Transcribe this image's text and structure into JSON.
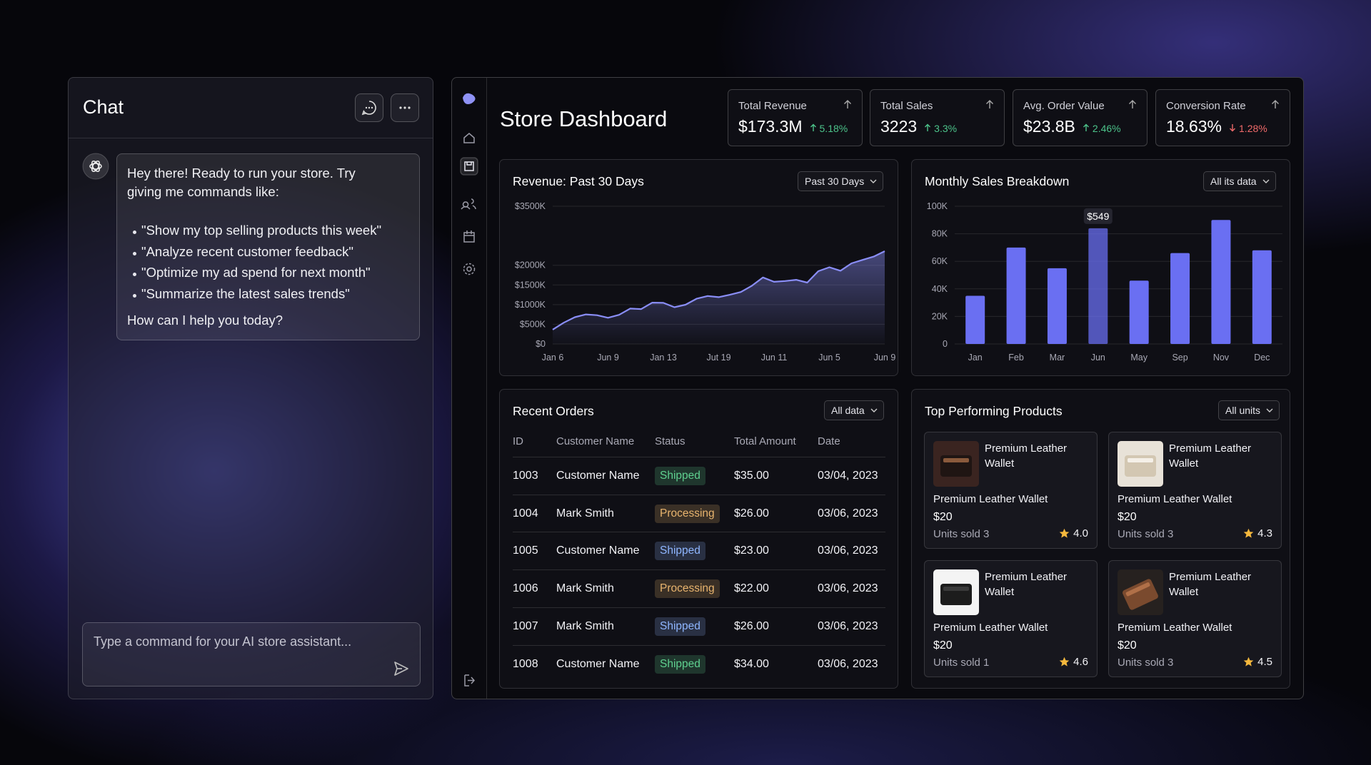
{
  "chat": {
    "title": "Chat",
    "message": {
      "intro": "Hey there! Ready to run your store. Try giving me commands like:",
      "commands": [
        "\"Show my top selling products this week\"",
        "\"Analyze recent customer feedback\"",
        "\"Optimize my ad spend for next month\"",
        "\"Summarize the latest sales trends\""
      ],
      "closing": "How can I help you today?"
    },
    "input_placeholder": "Type a command for your AI store assistant..."
  },
  "dashboard": {
    "title": "Store Dashboard",
    "kpis": [
      {
        "label": "Total Revenue",
        "value": "$173.3M",
        "change": "5.18%",
        "trend": "up"
      },
      {
        "label": "Total Sales",
        "value": "3223",
        "change": "3.3%",
        "trend": "up"
      },
      {
        "label": "Avg. Order Value",
        "value": "$23.8B",
        "change": "2.46%",
        "trend": "up"
      },
      {
        "label": "Conversion Rate",
        "value": "18.63%",
        "change": "1.28%",
        "trend": "down"
      }
    ],
    "recent_orders": {
      "title": "Recent Orders",
      "filter": "All data",
      "columns": [
        "ID",
        "Customer Name",
        "Status",
        "Total Amount",
        "Date"
      ],
      "rows": [
        {
          "id": "1003",
          "customer": "Customer Name",
          "status": "Shipped",
          "status_color": "#5fd08f",
          "amount": "$35.00",
          "date": "03/04, 2023"
        },
        {
          "id": "1004",
          "customer": "Mark Smith",
          "status": "Processing",
          "status_color": "#e8b46e",
          "amount": "$26.00",
          "date": "03/06, 2023"
        },
        {
          "id": "1005",
          "customer": "Customer Name",
          "status": "Shipped",
          "status_color": "#8fb6ff",
          "amount": "$23.00",
          "date": "03/06, 2023"
        },
        {
          "id": "1006",
          "customer": "Mark Smith",
          "status": "Processing",
          "status_color": "#e8b46e",
          "amount": "$22.00",
          "date": "03/06, 2023"
        },
        {
          "id": "1007",
          "customer": "Mark Smith",
          "status": "Shipped",
          "status_color": "#8fb6ff",
          "amount": "$26.00",
          "date": "03/06, 2023"
        },
        {
          "id": "1008",
          "customer": "Customer Name",
          "status": "Shipped",
          "status_color": "#5fd08f",
          "amount": "$34.00",
          "date": "03/06, 2023"
        }
      ]
    },
    "top_products": {
      "title": "Top Performing Products",
      "filter": "All units",
      "products": [
        {
          "name": "Premium Leather Wallet",
          "subtitle": "Premium Leather Wallet",
          "price": "$20",
          "units": "Units sold 3",
          "rating": "4.0"
        },
        {
          "name": "Premium Leather Wallet",
          "subtitle": "Premium Leather Wallet",
          "price": "$20",
          "units": "Units sold 3",
          "rating": "4.3"
        },
        {
          "name": "Premium Leather Wallet",
          "subtitle": "Premium Leather Wallet",
          "price": "$20",
          "units": "Units sold 1",
          "rating": "4.6"
        },
        {
          "name": "Premium Leather Wallet",
          "subtitle": "Premium Leather Wallet",
          "price": "$20",
          "units": "Units sold 3",
          "rating": "4.5"
        }
      ]
    }
  },
  "chart_data": [
    {
      "type": "line",
      "title": "Revenue: Past 30 Days",
      "filter": "Past 30 Days",
      "categories": [
        "Jan 6",
        null,
        null,
        null,
        null,
        "Jun 9",
        null,
        null,
        null,
        null,
        "Jan 13",
        null,
        null,
        null,
        null,
        "Jut 19",
        null,
        null,
        null,
        null,
        "Jun 11",
        null,
        null,
        null,
        null,
        "Jun 5",
        null,
        null,
        null,
        null,
        "Jun 9"
      ],
      "values": [
        364000,
        540000,
        680000,
        750000,
        730000,
        665000,
        740000,
        900000,
        886000,
        1050000,
        1044000,
        934000,
        997000,
        1150000,
        1218000,
        1190000,
        1250000,
        1320000,
        1480000,
        1690000,
        1580000,
        1600000,
        1630000,
        1560000,
        1850000,
        1950000,
        1860000,
        2050000,
        2136000,
        2220000,
        2358000
      ],
      "color": "#8a8ef7",
      "ylim": [
        0,
        3500000
      ],
      "yticks": [
        {
          "value": 0,
          "label": "$0"
        },
        {
          "value": 500000,
          "label": "$500K"
        },
        {
          "value": 1000000,
          "label": "$1000K"
        },
        {
          "value": 1500000,
          "label": "$1500K"
        },
        {
          "value": 2000000,
          "label": "$2000K"
        },
        {
          "value": 3500000,
          "label": "$3500K"
        }
      ],
      "grid": true
    },
    {
      "type": "bar",
      "title": "Monthly Sales Breakdown",
      "filter": "All its data",
      "categories": [
        "Jan",
        "Feb",
        "Mar",
        "Jun",
        "May",
        "Sep",
        "Nov",
        "Dec"
      ],
      "values": [
        35000,
        70000,
        55000,
        84000,
        46000,
        66000,
        90000,
        68000
      ],
      "color": "#6a6ff2",
      "ylim": [
        0,
        100000
      ],
      "yticks": [
        0,
        {
          "value": 20000,
          "label": "20K"
        },
        {
          "value": 40000,
          "label": "40K"
        },
        {
          "value": 60000,
          "label": "60K"
        },
        {
          "value": 80000,
          "label": "80K"
        },
        {
          "value": 100000,
          "label": "100K"
        }
      ],
      "grid": true,
      "annotations": [
        {
          "text": "$549",
          "x": "Jun"
        }
      ]
    }
  ]
}
